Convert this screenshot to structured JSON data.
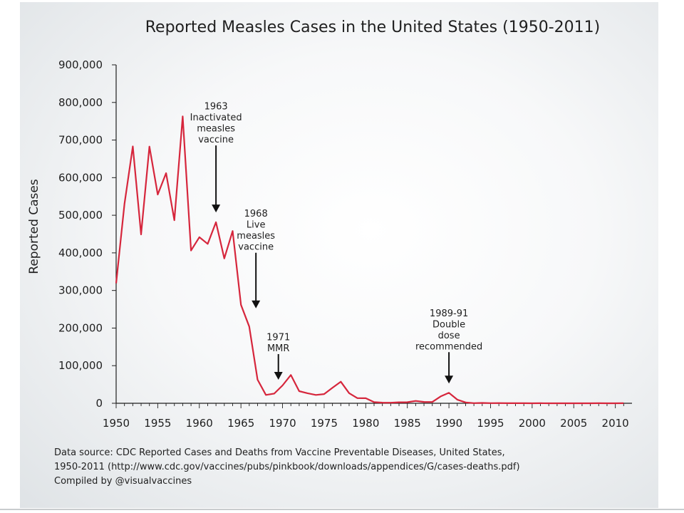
{
  "chart_data": {
    "type": "line",
    "title": "Reported Measles Cases in the United States (1950-2011)",
    "ylabel": "Reported Cases",
    "xlabel": "",
    "xlim": [
      1950,
      2012
    ],
    "ylim": [
      0,
      900000
    ],
    "yticks": [
      0,
      100000,
      200000,
      300000,
      400000,
      500000,
      600000,
      700000,
      800000,
      900000
    ],
    "ytick_labels": [
      "0",
      "100,000",
      "200,000",
      "300,000",
      "400,000",
      "500,000",
      "600,000",
      "700,000",
      "800,000",
      "900,000"
    ],
    "xticks": [
      1950,
      1955,
      1960,
      1965,
      1970,
      1975,
      1980,
      1985,
      1990,
      1995,
      2000,
      2005,
      2010
    ],
    "xtick_labels": [
      "1950",
      "1955",
      "1960",
      "1965",
      "1970",
      "1975",
      "1980",
      "1985",
      "1990",
      "1995",
      "2000",
      "2005",
      "2010"
    ],
    "grid": false,
    "series_color": "#d6263c",
    "series": [
      {
        "x": [
          1950,
          1951,
          1952,
          1953,
          1954,
          1955,
          1956,
          1957,
          1958,
          1959,
          1960,
          1961,
          1962,
          1963,
          1964,
          1965,
          1966,
          1967,
          1968,
          1969,
          1970,
          1971,
          1972,
          1973,
          1974,
          1975,
          1976,
          1977,
          1978,
          1979,
          1980,
          1981,
          1982,
          1983,
          1984,
          1985,
          1986,
          1987,
          1988,
          1989,
          1990,
          1991,
          1992,
          1993,
          1994,
          1995,
          1996,
          1997,
          1998,
          1999,
          2000,
          2001,
          2002,
          2003,
          2004,
          2005,
          2006,
          2007,
          2008,
          2009,
          2010,
          2011
        ],
        "values": [
          319124,
          530118,
          683077,
          449146,
          682720,
          555156,
          611936,
          486799,
          763094,
          406162,
          441703,
          423919,
          481530,
          385156,
          458083,
          261904,
          204136,
          62705,
          22231,
          25826,
          47351,
          75290,
          32275,
          26690,
          22094,
          24374,
          41126,
          57345,
          26871,
          13597,
          13506,
          3124,
          1714,
          1497,
          2587,
          2822,
          6282,
          3655,
          3396,
          18193,
          27786,
          9643,
          2237,
          312,
          963,
          309,
          508,
          138,
          100,
          100,
          86,
          116,
          44,
          56,
          37,
          66,
          55,
          43,
          140,
          71,
          63,
          220
        ]
      }
    ],
    "annotations": [
      {
        "lines": [
          "1963",
          "Inactivated",
          "measles",
          "vaccine"
        ],
        "year": 1962,
        "value": 500000
      },
      {
        "lines": [
          "1968",
          "Live",
          "measles",
          "vaccine"
        ],
        "year": 1966.8,
        "value": 245000
      },
      {
        "lines": [
          "1971",
          "MMR"
        ],
        "year": 1969.5,
        "value": 55000
      },
      {
        "lines": [
          "1989-91",
          "Double",
          "dose",
          "recommended"
        ],
        "year": 1990,
        "value": 45000
      }
    ]
  },
  "footer": {
    "source_line1": "Data source: CDC Reported Cases and Deaths from Vaccine Preventable Diseases, United States,",
    "source_line2": "1950-2011 (http://www.cdc.gov/vaccines/pubs/pinkbook/downloads/appendices/G/cases-deaths.pdf)",
    "credit": "Compiled by @visualvaccines"
  }
}
